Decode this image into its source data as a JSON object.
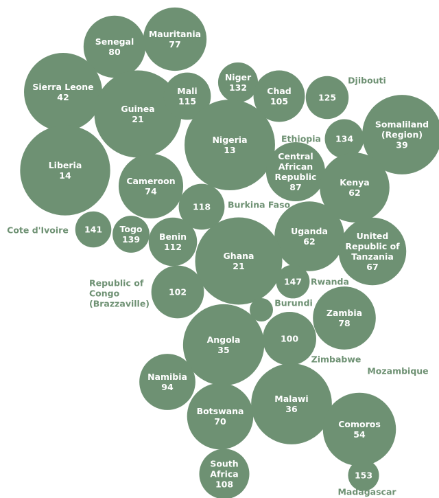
{
  "bubbles": [
    {
      "name": "Mauritania",
      "value": 77
    },
    {
      "name": "Senegal",
      "value": 80
    },
    {
      "name": "Sierra Leone",
      "value": 42
    },
    {
      "name": "Guinea",
      "value": 21
    },
    {
      "name": "Mali",
      "value": 115
    },
    {
      "name": "Niger",
      "value": 132
    },
    {
      "name": "Chad",
      "value": 105
    },
    {
      "name": "Djibouti",
      "value": 125
    },
    {
      "name": "Somaliland (Region)",
      "value": 39
    },
    {
      "name": "Nigeria",
      "value": 13
    },
    {
      "name": "Ethiopia",
      "value": 134
    },
    {
      "name": "Liberia",
      "value": 14
    },
    {
      "name": "Cameroon",
      "value": 74
    },
    {
      "name": "Central African Republic",
      "value": 87
    },
    {
      "name": "Kenya",
      "value": 62
    },
    {
      "name": "Burkina Faso",
      "value": 118
    },
    {
      "name": "Cote d'Ivoire",
      "value": 141
    },
    {
      "name": "Togo",
      "value": 139
    },
    {
      "name": "Benin",
      "value": 112
    },
    {
      "name": "Uganda",
      "value": 62
    },
    {
      "name": "United Republic of Tanzania",
      "value": 67
    },
    {
      "name": "Ghana",
      "value": 21
    },
    {
      "name": "Republic of Congo (Brazzaville)",
      "value": 102
    },
    {
      "name": "Rwanda",
      "value": 147
    },
    {
      "name": "Burundi",
      "value": null
    },
    {
      "name": "Zambia",
      "value": 78
    },
    {
      "name": "Angola",
      "value": 35
    },
    {
      "name": "Zimbabwe",
      "value": 100
    },
    {
      "name": "Mozambique",
      "value": null
    },
    {
      "name": "Namibia",
      "value": 94
    },
    {
      "name": "Malawi",
      "value": 36
    },
    {
      "name": "Botswana",
      "value": 70
    },
    {
      "name": "Comoros",
      "value": 54
    },
    {
      "name": "South Africa",
      "value": 108
    },
    {
      "name": "Madagascar",
      "value": 153
    }
  ],
  "color": "#6e9173"
}
